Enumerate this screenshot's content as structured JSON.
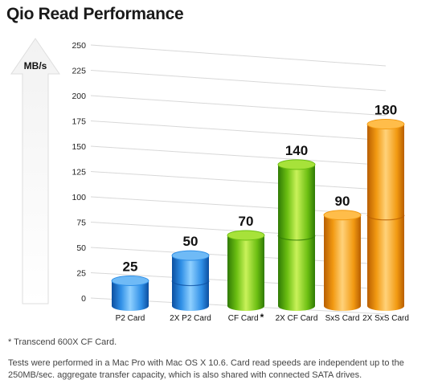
{
  "title": "Qio Read Performance",
  "chart_data": {
    "type": "bar",
    "ylabel": "MB/s",
    "ylim": [
      0,
      250
    ],
    "yticks": [
      "0",
      "25",
      "50",
      "75",
      "100",
      "125",
      "150",
      "175",
      "200",
      "225",
      "250"
    ],
    "categories": [
      "P2 Card",
      "2X P2 Card",
      "CF Card",
      "2X CF Card",
      "SxS Card",
      "2X SxS Card"
    ],
    "category_marks": [
      "",
      "",
      "*",
      "",
      "",
      ""
    ],
    "values": [
      25,
      50,
      70,
      140,
      90,
      180
    ],
    "data_labels": [
      "25",
      "50",
      "70",
      "140",
      "90",
      "180"
    ],
    "segments": [
      1,
      2,
      1,
      2,
      1,
      2
    ],
    "colors": [
      "blue",
      "blue",
      "green",
      "green",
      "orange",
      "orange"
    ],
    "grid": true,
    "legend": "none"
  },
  "palette": {
    "blue": {
      "light": "#8fd0ff",
      "mid": "#2f8fe6",
      "dark": "#0c4fa0",
      "top": "#6fbaf6"
    },
    "green": {
      "light": "#c9f25a",
      "mid": "#6cbf12",
      "dark": "#2f7a05",
      "top": "#a7e23a"
    },
    "orange": {
      "light": "#ffd27a",
      "mid": "#f29a12",
      "dark": "#b85e00",
      "top": "#ffbd4a"
    },
    "grid": "#d8d8d8",
    "arrow": "#eeeeee"
  },
  "footnote": "* Transcend 600X CF Card.",
  "notes": "Tests were performed in a Mac Pro with Mac OS X 10.6. Card read speeds are independent up to the 250MB/sec. aggregate transfer capacity, which is also shared with connected SATA drives."
}
